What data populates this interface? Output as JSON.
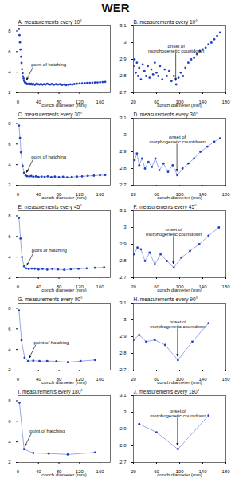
{
  "title": "WER",
  "chart_data": [
    {
      "type": "scatter",
      "title": "A. measurements every 10°",
      "xlabel": "conch diameter (mm)",
      "color": "#1f3fc4",
      "marker": "circle",
      "x": [
        2,
        3,
        4,
        5,
        6,
        7,
        8,
        9,
        10,
        11,
        12,
        13,
        14,
        15,
        16,
        17,
        18,
        20,
        22,
        24,
        26,
        28,
        30,
        33,
        36,
        39,
        42,
        45,
        48,
        51,
        54,
        57,
        60,
        63,
        66,
        70,
        74,
        78,
        82,
        86,
        90,
        94,
        98,
        102,
        106,
        110,
        115,
        120,
        125,
        130,
        135,
        140,
        145,
        150,
        155,
        160,
        165,
        170
      ],
      "values": [
        8.2,
        7.6,
        6.9,
        6.2,
        5.5,
        4.9,
        4.3,
        3.9,
        3.6,
        3.4,
        3.2,
        3.1,
        3.0,
        2.95,
        2.9,
        2.88,
        2.85,
        2.86,
        2.9,
        2.82,
        2.88,
        2.8,
        2.85,
        2.78,
        2.87,
        2.83,
        2.8,
        2.86,
        2.79,
        2.84,
        2.81,
        2.88,
        2.82,
        2.8,
        2.86,
        2.78,
        2.84,
        2.8,
        2.83,
        2.77,
        2.8,
        2.75,
        2.79,
        2.82,
        2.8,
        2.85,
        2.88,
        2.9,
        2.91,
        2.93,
        2.95,
        2.96,
        2.97,
        2.99,
        3.0,
        3.02,
        3.04,
        3.06
      ],
      "xlim": [
        0,
        180
      ],
      "xticks": [
        0,
        40,
        80,
        120,
        160
      ],
      "ylim": [
        2,
        8.5
      ],
      "yticks": [
        2,
        4,
        6,
        8
      ],
      "annotation": {
        "text": "point of hatching",
        "x": 15,
        "y": 2.95
      }
    },
    {
      "type": "scatter",
      "title": "B. measurements every 10°",
      "xlabel": "conch diameter (mm)",
      "color": "#1f3fc4",
      "marker": "circle",
      "x": [
        20,
        22,
        24,
        26,
        28,
        30,
        33,
        36,
        39,
        42,
        45,
        48,
        51,
        54,
        57,
        60,
        63,
        66,
        70,
        74,
        78,
        82,
        86,
        90,
        94,
        98,
        102,
        106,
        110,
        115,
        120,
        125,
        130,
        135,
        140,
        145,
        150,
        155,
        160,
        165,
        170
      ],
      "values": [
        2.86,
        2.9,
        2.82,
        2.88,
        2.8,
        2.85,
        2.78,
        2.87,
        2.83,
        2.8,
        2.86,
        2.79,
        2.84,
        2.81,
        2.88,
        2.82,
        2.8,
        2.86,
        2.78,
        2.84,
        2.8,
        2.83,
        2.77,
        2.8,
        2.75,
        2.79,
        2.82,
        2.8,
        2.85,
        2.88,
        2.9,
        2.91,
        2.93,
        2.95,
        2.96,
        2.97,
        2.99,
        3.0,
        3.02,
        3.04,
        3.06
      ],
      "xlim": [
        20,
        180
      ],
      "xticks": [
        20,
        60,
        100,
        140,
        180
      ],
      "ylim": [
        2.7,
        3.1
      ],
      "yticks": [
        2.7,
        2.8,
        2.9,
        3,
        3.1
      ],
      "annotation": {
        "text": "onset of\nmorphogenetic countdown",
        "x": 94,
        "y": 2.75
      }
    },
    {
      "type": "line",
      "title": "C. measurements every 30°",
      "xlabel": "conch diameter (mm)",
      "color": "#1f3fc4",
      "marker": "circle",
      "x": [
        2,
        4,
        6,
        9,
        12,
        15,
        18,
        22,
        26,
        30,
        35,
        40,
        46,
        52,
        58,
        65,
        72,
        80,
        88,
        96,
        105,
        115,
        125,
        136,
        148,
        160,
        170
      ],
      "values": [
        7.8,
        6.6,
        5.2,
        3.9,
        3.2,
        2.95,
        2.88,
        2.85,
        2.89,
        2.82,
        2.86,
        2.8,
        2.84,
        2.81,
        2.86,
        2.79,
        2.83,
        2.78,
        2.82,
        2.76,
        2.8,
        2.83,
        2.86,
        2.9,
        2.93,
        2.96,
        2.98
      ],
      "xlim": [
        0,
        180
      ],
      "xticks": [
        0,
        40,
        80,
        120,
        160
      ],
      "ylim": [
        2,
        8.5
      ],
      "yticks": [
        2,
        4,
        6,
        8
      ],
      "annotation": {
        "text": "point of hatching",
        "x": 15,
        "y": 2.95
      }
    },
    {
      "type": "line",
      "title": "D. measurements every 30°",
      "xlabel": "conch diameter (mm)",
      "color": "#1f3fc4",
      "marker": "circle",
      "x": [
        22,
        26,
        30,
        35,
        40,
        46,
        52,
        58,
        65,
        72,
        80,
        88,
        96,
        105,
        115,
        125,
        136,
        148,
        160,
        170
      ],
      "values": [
        2.85,
        2.89,
        2.82,
        2.86,
        2.8,
        2.84,
        2.81,
        2.86,
        2.79,
        2.83,
        2.78,
        2.82,
        2.76,
        2.8,
        2.83,
        2.86,
        2.9,
        2.93,
        2.96,
        2.98
      ],
      "xlim": [
        20,
        180
      ],
      "xticks": [
        20,
        60,
        100,
        140,
        180
      ],
      "ylim": [
        2.7,
        3.1
      ],
      "yticks": [
        2.7,
        2.8,
        2.9,
        3,
        3.1
      ],
      "annotation": {
        "text": "onset of\nmorphogenetic countdown",
        "x": 96,
        "y": 2.76
      }
    },
    {
      "type": "line",
      "title": "E. measurements every 45°",
      "xlabel": "conch diameter (mm)",
      "color": "#1f3fc4",
      "marker": "circle",
      "x": [
        2,
        5,
        8,
        12,
        16,
        21,
        27,
        33,
        40,
        48,
        57,
        67,
        78,
        90,
        103,
        118,
        134,
        150,
        168
      ],
      "values": [
        7.8,
        5.8,
        4.0,
        3.1,
        2.9,
        2.84,
        2.88,
        2.87,
        2.8,
        2.85,
        2.78,
        2.84,
        2.8,
        2.76,
        2.82,
        2.86,
        2.9,
        2.95,
        3.0
      ],
      "xlim": [
        0,
        180
      ],
      "xticks": [
        0,
        40,
        80,
        120,
        160
      ],
      "ylim": [
        2,
        8.5
      ],
      "yticks": [
        2,
        4,
        6,
        8
      ],
      "annotation": {
        "text": "point of hatching",
        "x": 16,
        "y": 2.9
      }
    },
    {
      "type": "line",
      "title": "F. measurements every 45°",
      "xlabel": "conch diameter (mm)",
      "color": "#1f3fc4",
      "marker": "circle",
      "x": [
        21,
        27,
        33,
        40,
        48,
        57,
        67,
        78,
        90,
        103,
        118,
        134,
        150,
        168
      ],
      "values": [
        2.84,
        2.88,
        2.87,
        2.8,
        2.85,
        2.78,
        2.84,
        2.8,
        2.76,
        2.82,
        2.86,
        2.9,
        2.95,
        3.0
      ],
      "xlim": [
        20,
        180
      ],
      "xticks": [
        20,
        60,
        100,
        140,
        180
      ],
      "ylim": [
        2.7,
        3.1
      ],
      "yticks": [
        2.7,
        2.8,
        2.9,
        3,
        3.1
      ],
      "annotation": {
        "text": "onset of\nmorphogenetic countdown",
        "x": 90,
        "y": 2.76
      }
    },
    {
      "type": "line",
      "title": "G. measurements every 90°",
      "xlabel": "conch diameter (mm)",
      "color": "#1f3fc4",
      "marker": "circle",
      "x": [
        2,
        7,
        13,
        20,
        30,
        42,
        57,
        75,
        97,
        122,
        150
      ],
      "values": [
        7.8,
        4.9,
        3.2,
        2.88,
        2.91,
        2.87,
        2.88,
        2.85,
        2.76,
        2.87,
        2.98
      ],
      "xlim": [
        0,
        180
      ],
      "xticks": [
        0,
        40,
        80,
        120,
        160
      ],
      "ylim": [
        2,
        8.5
      ],
      "yticks": [
        2,
        4,
        6,
        8
      ],
      "annotation": {
        "text": "point of hatching",
        "x": 20,
        "y": 2.88
      }
    },
    {
      "type": "line",
      "title": "H. measurements every 90°",
      "xlabel": "conch diameter (mm)",
      "color": "#1f3fc4",
      "marker": "circle",
      "x": [
        20,
        30,
        42,
        57,
        75,
        97,
        122,
        150
      ],
      "values": [
        2.88,
        2.91,
        2.87,
        2.88,
        2.85,
        2.76,
        2.87,
        2.98
      ],
      "xlim": [
        20,
        180
      ],
      "xticks": [
        20,
        60,
        100,
        140,
        180
      ],
      "ylim": [
        2.7,
        3.1
      ],
      "yticks": [
        2.7,
        2.8,
        2.9,
        3,
        3.1
      ],
      "annotation": {
        "text": "onset of\nmorphogenetic countdown",
        "x": 97,
        "y": 2.76
      }
    },
    {
      "type": "line",
      "title": "I. measurements every 180°",
      "xlabel": "conch diameter (mm)",
      "color": "#1f3fc4",
      "marker": "circle",
      "x": [
        3,
        12,
        30,
        60,
        97,
        150
      ],
      "values": [
        7.8,
        3.3,
        2.93,
        2.88,
        2.78,
        2.98
      ],
      "xlim": [
        0,
        180
      ],
      "xticks": [
        0,
        40,
        80,
        120,
        160
      ],
      "ylim": [
        2,
        8.5
      ],
      "yticks": [
        2,
        4,
        6,
        8
      ],
      "annotation": {
        "text": "point of hatching",
        "x": 12,
        "y": 3.3
      }
    },
    {
      "type": "line",
      "title": "J. measurements every 180°",
      "xlabel": "conch diameter (mm)",
      "color": "#1f3fc4",
      "marker": "circle",
      "x": [
        30,
        60,
        97,
        150
      ],
      "values": [
        2.93,
        2.88,
        2.78,
        2.98
      ],
      "xlim": [
        20,
        180
      ],
      "xticks": [
        20,
        60,
        100,
        140,
        180
      ],
      "ylim": [
        2.7,
        3.1
      ],
      "yticks": [
        2.7,
        2.8,
        2.9,
        3,
        3.1
      ],
      "annotation": {
        "text": "onset of\nmorphogenetic countdown",
        "x": 97,
        "y": 2.78
      }
    }
  ]
}
